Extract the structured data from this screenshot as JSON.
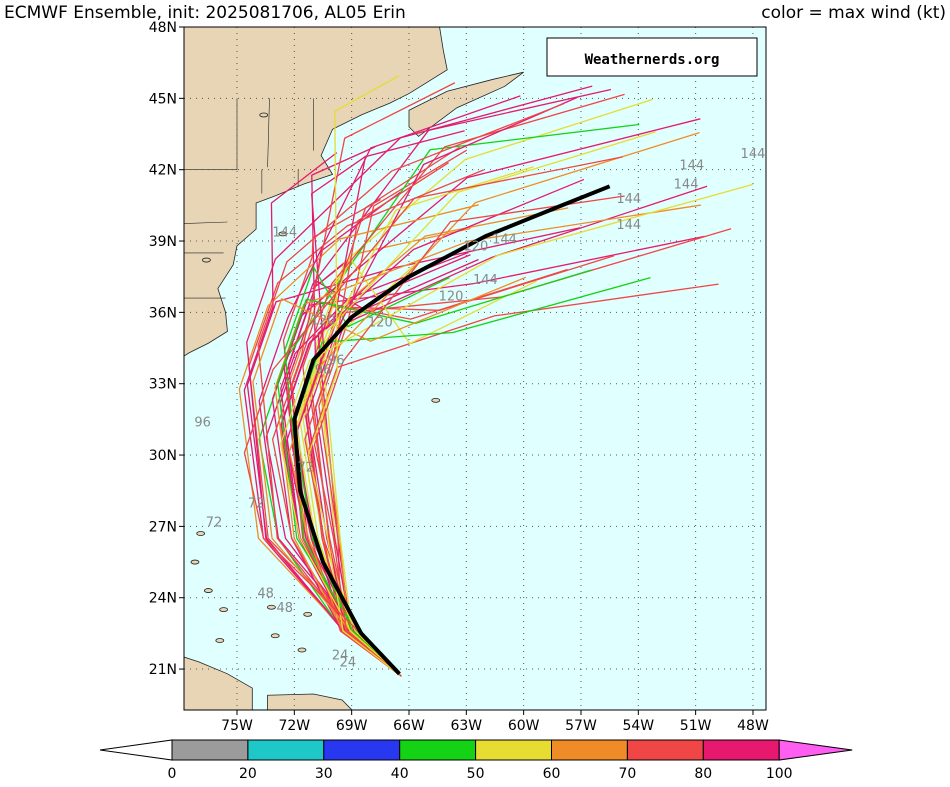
{
  "header": {
    "title": "ECMWF Ensemble, init: 2025081706, AL05 Erin",
    "legend_note": "color = max wind (kt)"
  },
  "watermark": "Weathernerds.org",
  "map": {
    "lat_labels": [
      "45N",
      "42N",
      "39N",
      "36N",
      "33N",
      "30N",
      "27N",
      "24N",
      "21N",
      "48N"
    ],
    "lon_labels": [
      "75W",
      "72W",
      "69W",
      "66W",
      "63W",
      "60W",
      "57W",
      "54W",
      "51W",
      "48W"
    ],
    "track_labels": [
      "144",
      "144",
      "144",
      "144",
      "144",
      "144",
      "144",
      "144",
      "120",
      "120",
      "120",
      "120",
      "96",
      "96",
      "96",
      "72",
      "72",
      "72",
      "48",
      "48",
      "24",
      "24"
    ]
  },
  "colorbar": {
    "ticks": [
      0,
      20,
      30,
      40,
      50,
      60,
      70,
      80,
      100
    ],
    "colors": [
      "#9b9b9b",
      "#1ec8c8",
      "#2838f0",
      "#14d214",
      "#e6dc32",
      "#f08c28",
      "#f04646",
      "#e6196e"
    ],
    "low_color": "#ffffff",
    "high_color": "#ff5ff0"
  }
}
